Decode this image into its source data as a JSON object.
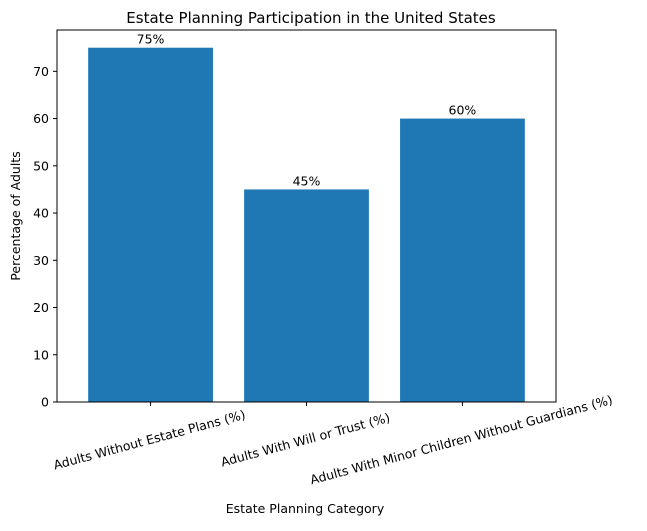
{
  "chart_data": {
    "type": "bar",
    "title": "Estate Planning Participation in the United States",
    "xlabel": "Estate Planning Category",
    "ylabel": "Percentage of Adults",
    "categories": [
      "Adults Without Estate Plans (%)",
      "Adults With Will or Trust (%)",
      "Adults With Minor Children Without Guardians (%)"
    ],
    "values": [
      75,
      45,
      60
    ],
    "data_labels": [
      "75%",
      "45%",
      "60%"
    ],
    "ylim": [
      0,
      78.75
    ],
    "yticks": [
      0,
      10,
      20,
      30,
      40,
      50,
      60,
      70
    ],
    "grid": false,
    "bar_color": "#1f77b4",
    "x_tick_rotation_deg": -15
  }
}
